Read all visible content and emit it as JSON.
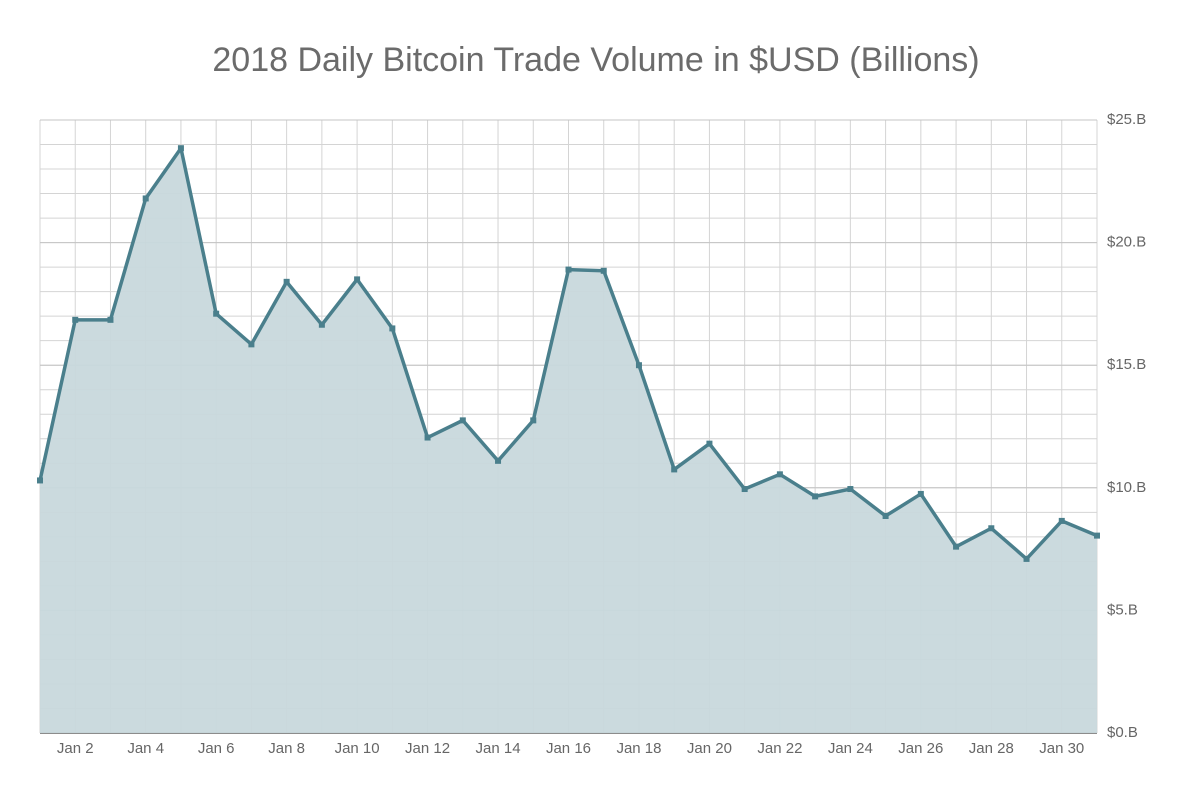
{
  "chart_data": {
    "type": "area",
    "title": "2018 Daily Bitcoin Trade Volume in $USD (Billions)",
    "categories": [
      null,
      "Jan 2",
      null,
      "Jan 4",
      null,
      "Jan 6",
      null,
      "Jan 8",
      null,
      "Jan 10",
      null,
      "Jan 12",
      null,
      "Jan 14",
      null,
      "Jan 16",
      null,
      "Jan 18",
      null,
      "Jan 20",
      null,
      "Jan 22",
      null,
      "Jan 24",
      null,
      "Jan 26",
      null,
      "Jan 28",
      null,
      "Jan 30",
      null
    ],
    "values": [
      10.3,
      16.85,
      16.85,
      21.8,
      23.85,
      17.1,
      15.85,
      18.4,
      16.65,
      18.5,
      16.5,
      12.05,
      12.75,
      11.1,
      12.75,
      18.9,
      18.85,
      15.0,
      10.75,
      11.8,
      9.95,
      10.55,
      9.65,
      9.95,
      8.85,
      9.75,
      7.6,
      8.35,
      7.1,
      8.65,
      8.05
    ],
    "color": "#4a7f8c",
    "fill_color": "#c8d8dc",
    "ylim": [
      0,
      25
    ],
    "yticks": [
      {
        "value": 0,
        "label": "$0.B"
      },
      {
        "value": 5,
        "label": "$5.B"
      },
      {
        "value": 10,
        "label": "$10.B"
      },
      {
        "value": 15,
        "label": "$15.B"
      },
      {
        "value": 20,
        "label": "$20.B"
      },
      {
        "value": 25,
        "label": "$25.B"
      }
    ],
    "grid": true,
    "y_axis_side": "right"
  }
}
